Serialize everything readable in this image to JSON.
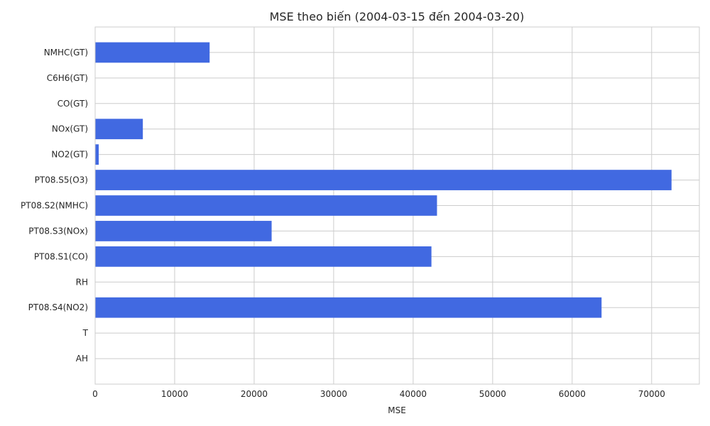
{
  "chart_data": {
    "type": "bar",
    "orientation": "horizontal",
    "title": "MSE theo biến (2004-03-15 đến 2004-03-20)",
    "xlabel": "MSE",
    "ylabel": "",
    "categories": [
      "NMHC(GT)",
      "C6H6(GT)",
      "CO(GT)",
      "NOx(GT)",
      "NO2(GT)",
      "PT08.S5(O3)",
      "PT08.S2(NMHC)",
      "PT08.S3(NOx)",
      "PT08.S1(CO)",
      "RH",
      "PT08.S4(NO2)",
      "T",
      "AH"
    ],
    "values": [
      14400,
      10,
      2,
      6000,
      450,
      72500,
      43000,
      22200,
      42300,
      15,
      63700,
      3,
      0
    ],
    "xlim": [
      0,
      76000
    ],
    "xticks": [
      0,
      10000,
      20000,
      30000,
      40000,
      50000,
      60000,
      70000
    ],
    "grid": true,
    "bar_color": "#4169e1"
  }
}
